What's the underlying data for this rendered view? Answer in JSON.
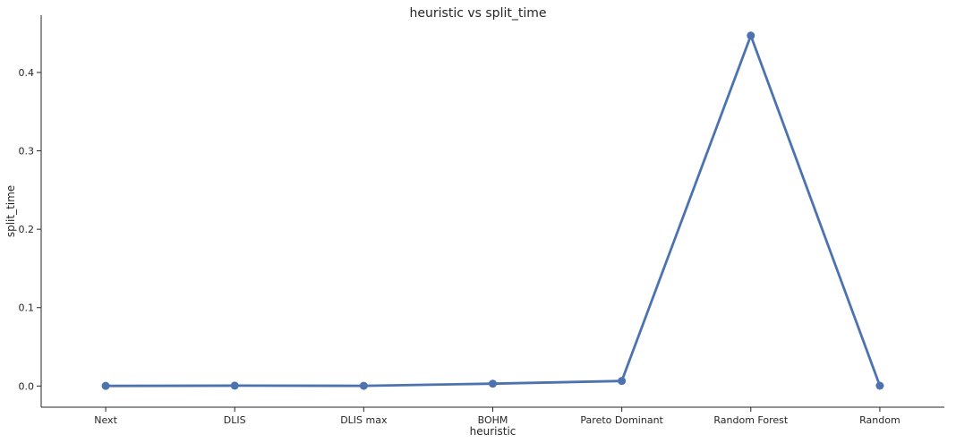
{
  "chart_data": {
    "type": "line",
    "title": "heuristic vs split_time",
    "xlabel": "heuristic",
    "ylabel": "split_time",
    "categories": [
      "Next",
      "DLIS",
      "DLIS max",
      "BOHM",
      "Pareto Dominant",
      "Random Forest",
      "Random"
    ],
    "series": [
      {
        "values": [
          0.0002,
          0.0005,
          0.0003,
          0.003,
          0.0065,
          0.447,
          0.0004
        ],
        "color": "#4c72b0"
      }
    ],
    "yticks": [
      0.0,
      0.1,
      0.2,
      0.3,
      0.4
    ],
    "ytick_labels": [
      "0.0",
      "0.1",
      "0.2",
      "0.3",
      "0.4"
    ],
    "ylim": [
      -0.027,
      0.473
    ],
    "grid": false,
    "marker": "circle"
  }
}
